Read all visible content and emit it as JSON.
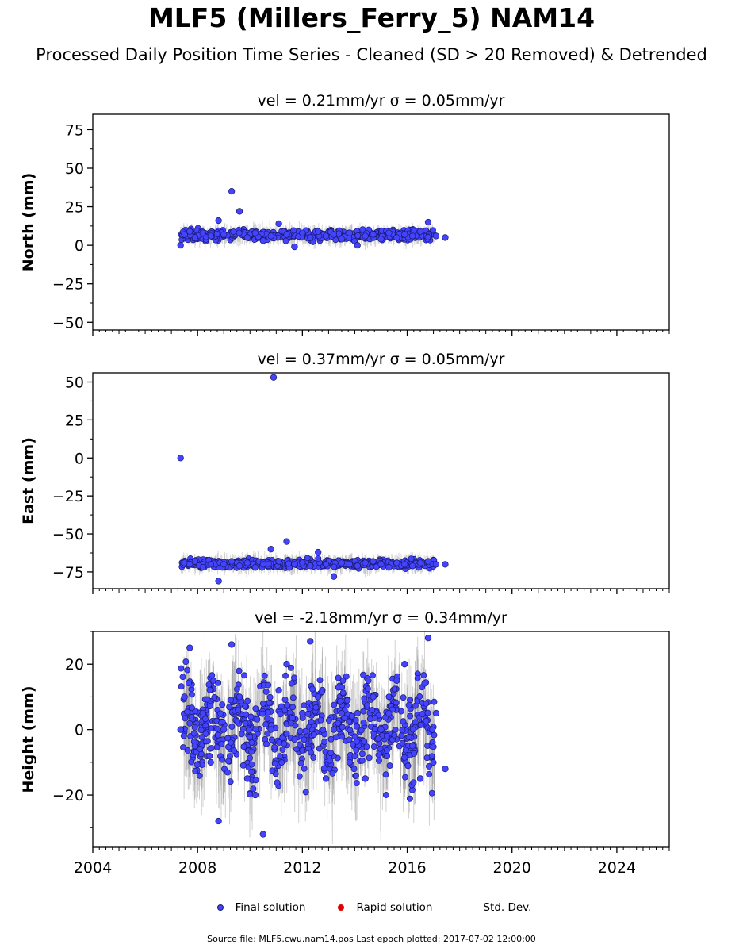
{
  "figure": {
    "title": "MLF5 (Millers_Ferry_5) NAM14",
    "subtitle": "Processed Daily Position Time Series - Cleaned (SD > 20 Removed) & Detrended",
    "footer": "Source file: MLF5.cwu.nam14.pos  Last epoch plotted: 2017-07-02 12:00:00"
  },
  "legend": {
    "placement": "bottom-center",
    "items": [
      {
        "label": "Final solution",
        "marker": "dot",
        "color": "#4444ff"
      },
      {
        "label": "Rapid solution",
        "marker": "dot",
        "color": "#e00000"
      },
      {
        "label": "Std. Dev.",
        "marker": "line",
        "color": "#cccccc"
      }
    ]
  },
  "colors": {
    "final": "#4444ff",
    "final_edge": "#1a1a6e",
    "rapid": "#e00000",
    "stddev": "#bbbbbb"
  },
  "chart_data": [
    {
      "type": "scatter",
      "title": "vel = 0.21mm/yr   σ = 0.05mm/yr",
      "ylabel": "North (mm)",
      "xlim": [
        2004,
        2026
      ],
      "ylim": [
        -55,
        85
      ],
      "yticks": [
        -50,
        -25,
        0,
        25,
        50,
        75
      ],
      "x_major_ticks": [
        2004,
        2008,
        2012,
        2016,
        2020,
        2024
      ],
      "grid": false,
      "series": [
        {
          "name": "Final solution",
          "x": [
            2007.35,
            2007.5,
            2007.7,
            2007.9,
            2008.2,
            2008.5,
            2008.8,
            2009.0,
            2009.3,
            2009.6,
            2009.9,
            2010.2,
            2010.5,
            2010.8,
            2011.1,
            2011.4,
            2011.7,
            2012.0,
            2012.3,
            2012.6,
            2012.9,
            2013.2,
            2013.5,
            2013.8,
            2014.1,
            2014.4,
            2014.7,
            2015.0,
            2015.3,
            2015.6,
            2015.9,
            2016.2,
            2016.5,
            2016.8,
            2017.1,
            2017.45
          ],
          "y": [
            0,
            7,
            9,
            5,
            8,
            6,
            16,
            7,
            35,
            22,
            5,
            8,
            3,
            6,
            14,
            7,
            -1,
            8,
            5,
            9,
            6,
            7,
            4,
            8,
            0,
            6,
            7,
            4,
            8,
            5,
            7,
            6,
            9,
            15,
            6,
            5
          ]
        },
        {
          "name": "Rapid solution",
          "x": [],
          "y": []
        }
      ]
    },
    {
      "type": "scatter",
      "title": "vel = 0.37mm/yr   σ = 0.05mm/yr",
      "ylabel": "East (mm)",
      "xlim": [
        2004,
        2026
      ],
      "ylim": [
        -86,
        56
      ],
      "yticks": [
        -75,
        -50,
        -25,
        0,
        25,
        50
      ],
      "x_major_ticks": [
        2004,
        2008,
        2012,
        2016,
        2020,
        2024
      ],
      "grid": false,
      "series": [
        {
          "name": "Final solution",
          "x": [
            2007.35,
            2007.5,
            2007.7,
            2007.9,
            2008.2,
            2008.5,
            2008.8,
            2009.0,
            2009.3,
            2009.6,
            2009.9,
            2010.2,
            2010.5,
            2010.8,
            2010.9,
            2011.1,
            2011.4,
            2011.7,
            2012.0,
            2012.3,
            2012.6,
            2012.9,
            2013.2,
            2013.5,
            2013.8,
            2014.1,
            2014.4,
            2014.7,
            2015.0,
            2015.3,
            2015.6,
            2015.9,
            2016.2,
            2016.5,
            2016.8,
            2017.1,
            2017.45
          ],
          "y": [
            0,
            -69,
            -70,
            -68,
            -72,
            -70,
            -81,
            -70,
            -68,
            -71,
            -69,
            -72,
            -70,
            -60,
            53,
            -68,
            -55,
            -70,
            -69,
            -71,
            -62,
            -70,
            -78,
            -69,
            -70,
            -71,
            -69,
            -68,
            -70,
            -72,
            -69,
            -70,
            -71,
            -69,
            -68,
            -70,
            -70
          ]
        },
        {
          "name": "Rapid solution",
          "x": [],
          "y": []
        }
      ]
    },
    {
      "type": "scatter",
      "title": "vel = -2.18mm/yr   σ = 0.34mm/yr",
      "ylabel": "Height (mm)",
      "xlim": [
        2004,
        2026
      ],
      "ylim": [
        -36,
        30
      ],
      "yticks": [
        -20,
        0,
        20
      ],
      "x_major_ticks": [
        2004,
        2008,
        2012,
        2016,
        2020,
        2024
      ],
      "x_tick_labels": [
        "2004",
        "2008",
        "2012",
        "2016",
        "2020",
        "2024"
      ],
      "grid": false,
      "series": [
        {
          "name": "Final solution",
          "x": [
            2007.35,
            2007.5,
            2007.7,
            2007.9,
            2008.2,
            2008.5,
            2008.8,
            2009.0,
            2009.3,
            2009.6,
            2009.9,
            2010.2,
            2010.5,
            2010.8,
            2011.1,
            2011.4,
            2011.7,
            2012.0,
            2012.3,
            2012.6,
            2012.9,
            2013.2,
            2013.5,
            2013.8,
            2014.1,
            2014.4,
            2014.7,
            2015.0,
            2015.3,
            2015.6,
            2015.9,
            2016.2,
            2016.5,
            2016.8,
            2017.1,
            2017.45
          ],
          "y": [
            0,
            10,
            25,
            -5,
            5,
            -10,
            -28,
            0,
            26,
            10,
            -15,
            -20,
            -32,
            0,
            12,
            20,
            -3,
            5,
            27,
            10,
            -15,
            0,
            5,
            -10,
            5,
            -15,
            10,
            0,
            5,
            15,
            20,
            -5,
            -15,
            28,
            5,
            -12
          ]
        },
        {
          "name": "Rapid solution",
          "x": [],
          "y": []
        }
      ]
    }
  ]
}
